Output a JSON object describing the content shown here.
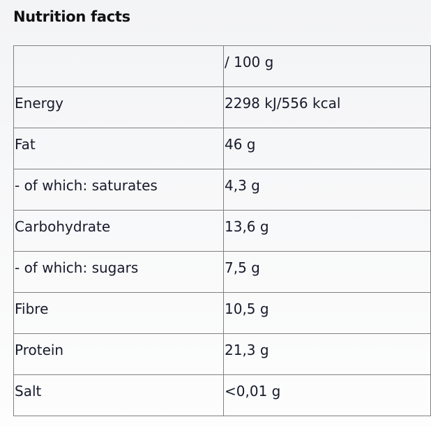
{
  "title": "Nutrition facts",
  "header": {
    "label": "",
    "value": "/ 100 g"
  },
  "rows": [
    {
      "label": "Energy",
      "value": "2298 kJ/556 kcal"
    },
    {
      "label": "Fat",
      "value": "46 g"
    },
    {
      "label": "- of which: saturates",
      "value": "4,3 g"
    },
    {
      "label": "Carbohydrate",
      "value": "13,6 g"
    },
    {
      "label": "- of which: sugars",
      "value": "7,5 g"
    },
    {
      "label": "Fibre",
      "value": "10,5 g"
    },
    {
      "label": "Protein",
      "value": "21,3 g"
    },
    {
      "label": "Salt",
      "value": "<0,01 g"
    }
  ]
}
